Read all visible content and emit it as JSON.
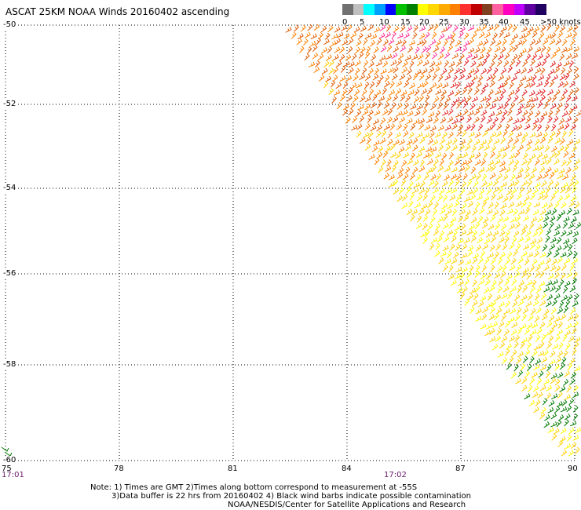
{
  "title": "ASCAT 25KM NOAA Winds 20160402 ascending",
  "legend": {
    "colors": [
      "#707070",
      "#c0c0c0",
      "#00ffff",
      "#00a0ff",
      "#0000ff",
      "#00c000",
      "#008000",
      "#ffff00",
      "#ffd700",
      "#ffaa00",
      "#ff8000",
      "#ff3030",
      "#c00000",
      "#804020",
      "#ff60a0",
      "#ff00c0",
      "#c000ff",
      "#6000a0",
      "#200060"
    ],
    "labels": [
      "0",
      "5",
      "10",
      "15",
      "20",
      "25",
      "30",
      "35",
      "40",
      "45",
      ">50 knots"
    ]
  },
  "map": {
    "x_ticks": [
      "75",
      "78",
      "81",
      "84",
      "87",
      "90"
    ],
    "y_ticks": [
      "-50",
      "-52",
      "-54",
      "-56",
      "-58",
      "-60"
    ],
    "time_labels": [
      "17:01",
      "17:02"
    ]
  },
  "notes": [
    "Note: 1) Times are GMT 2)Times along bottom correspond to measurement at -55S",
    "3)Data buffer is 22 hrs from 20160402 4) Black wind barbs indicate possible contamination",
    "NOAA/NESDIS/Center for Satellite Applications and Research"
  ],
  "wind_colors": {
    "orange": "#ff8000",
    "dark_orange": "#e05a00",
    "red": "#e02020",
    "pink": "#ff3090",
    "yellow": "#ffff00",
    "gold": "#ffd000",
    "green": "#007a00"
  }
}
